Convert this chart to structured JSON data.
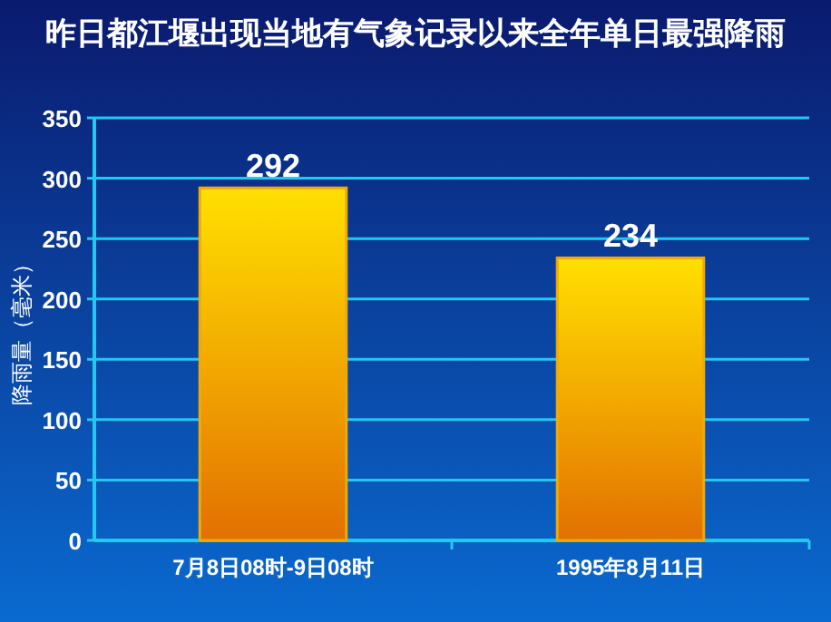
{
  "chart_data": {
    "type": "bar",
    "title": "昨日都江堰出现当地有气象记录以来全年单日最强降雨",
    "ylabel": "降雨量（毫米）",
    "categories": [
      "7月8日08时-9日08时",
      "1995年8月11日"
    ],
    "values": [
      292,
      234
    ],
    "color": "#f2a900",
    "data_labels": true,
    "ylim": [
      0,
      350
    ],
    "yticks": [
      0,
      50,
      100,
      150,
      200,
      250,
      300,
      350
    ],
    "grid": "y"
  }
}
